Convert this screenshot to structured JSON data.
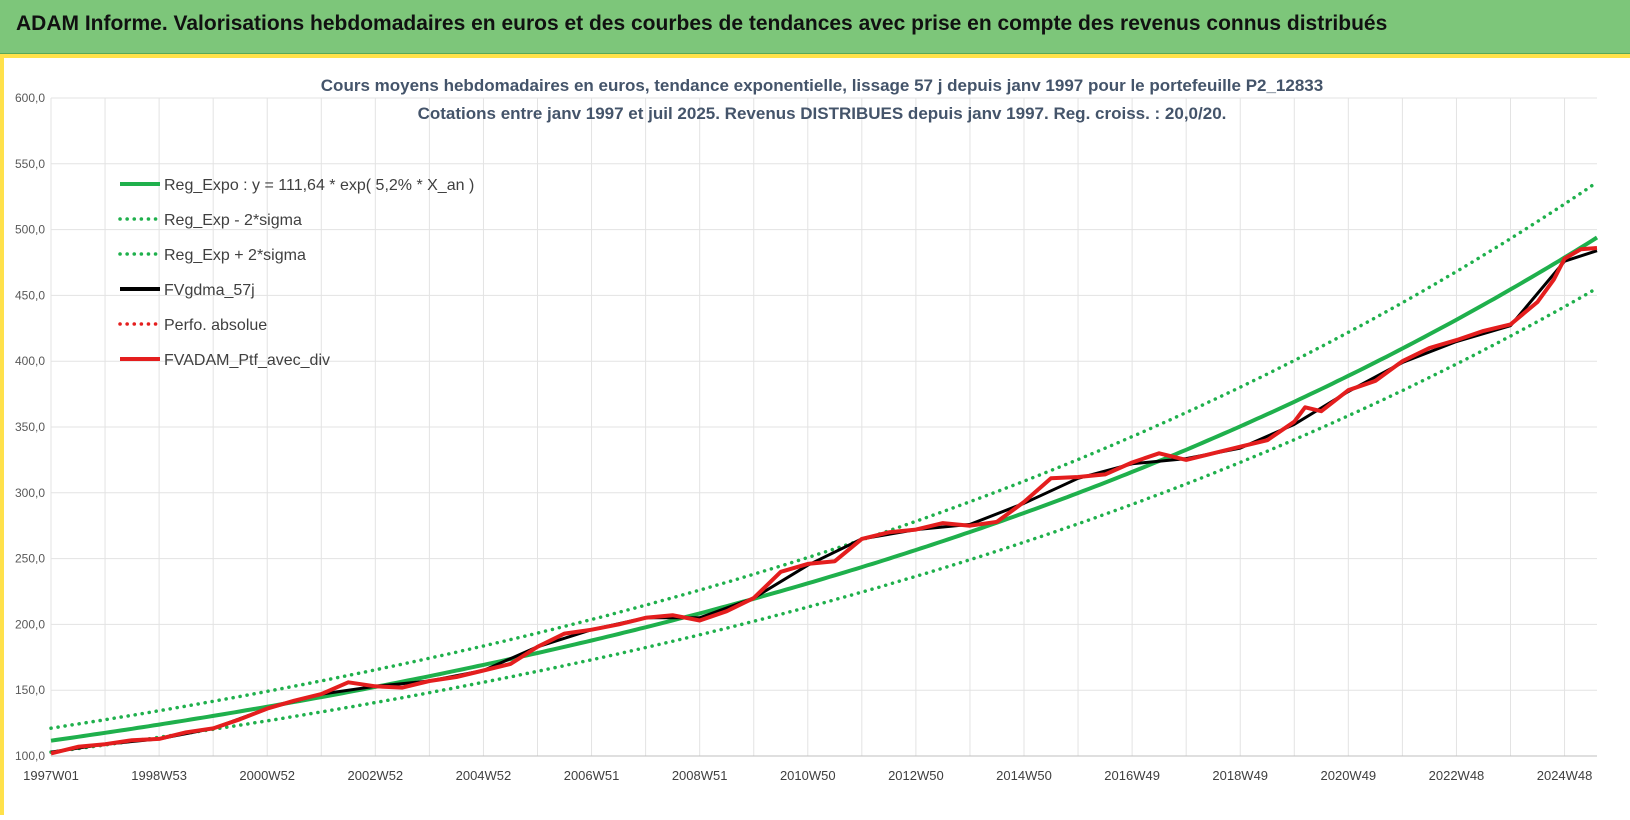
{
  "header": {
    "title": "ADAM Informe. Valorisations hebdomadaires en euros et des courbes de tendances avec prise en compte des revenus connus distribués"
  },
  "chart_data": {
    "type": "line",
    "title": "Cours moyens hebdomadaires  en euros, tendance exponentielle, lissage 57 j depuis janv 1997 pour le portefeuille P2_12833",
    "subtitle": "Cotations  entre janv 1997 et juil 2025. Revenus DISTRIBUES depuis janv 1997. Reg. croiss. : 20,0/20.",
    "xlabel": "",
    "ylabel": "",
    "ylim": [
      100,
      600
    ],
    "xlim": [
      1997.0,
      2025.6
    ],
    "grid": true,
    "legend_position": "top-left",
    "y_ticks": [
      100,
      150,
      200,
      250,
      300,
      350,
      400,
      450,
      500,
      550,
      600
    ],
    "y_tick_labels": [
      "100,0",
      "150,0",
      "200,0",
      "250,0",
      "300,0",
      "350,0",
      "400,0",
      "450,0",
      "500,0",
      "550,0",
      "600,0"
    ],
    "x_ticks": [
      {
        "label": "1997W01",
        "t": 1997.0
      },
      {
        "label": "1998W53",
        "t": 1999.0
      },
      {
        "label": "2000W52",
        "t": 2001.0
      },
      {
        "label": "2002W52",
        "t": 2003.0
      },
      {
        "label": "2004W52",
        "t": 2005.0
      },
      {
        "label": "2006W51",
        "t": 2007.0
      },
      {
        "label": "2008W51",
        "t": 2009.0
      },
      {
        "label": "2010W50",
        "t": 2011.0
      },
      {
        "label": "2012W50",
        "t": 2013.0
      },
      {
        "label": "2014W50",
        "t": 2015.0
      },
      {
        "label": "2016W49",
        "t": 2017.0
      },
      {
        "label": "2018W49",
        "t": 2019.0
      },
      {
        "label": "2020W49",
        "t": 2021.0
      },
      {
        "label": "2022W48",
        "t": 2023.0
      },
      {
        "label": "2024W48",
        "t": 2025.0
      }
    ],
    "regression": {
      "a": 111.64,
      "rate": 0.052,
      "upper_factor": 1.085,
      "lower_factor": 0.922
    },
    "legend": [
      {
        "name": "Reg_Expo : y = 111,64 * exp( 5,2% *  X_an )",
        "color": "#1fb04c",
        "style": "solid"
      },
      {
        "name": "Reg_Exp - 2*sigma",
        "color": "#1fb04c",
        "style": "dotted"
      },
      {
        "name": "Reg_Exp + 2*sigma",
        "color": "#1fb04c",
        "style": "dotted"
      },
      {
        "name": "FVgdma_57j",
        "color": "#000000",
        "style": "solid"
      },
      {
        "name": "Perfo. absolue",
        "color": "#e41e1e",
        "style": "dotted"
      },
      {
        "name": "FVADAM_Ptf_avec_div",
        "color": "#e41e1e",
        "style": "solid"
      }
    ],
    "series": [
      {
        "name": "FVADAM_Ptf_avec_div",
        "x": [
          1997.0,
          1997.5,
          1998.0,
          1998.5,
          1999.0,
          1999.5,
          2000.0,
          2000.5,
          2001.0,
          2001.5,
          2002.0,
          2002.5,
          2003.0,
          2003.5,
          2004.0,
          2004.5,
          2005.0,
          2005.5,
          2006.0,
          2006.5,
          2007.0,
          2007.5,
          2008.0,
          2008.5,
          2009.0,
          2009.5,
          2010.0,
          2010.5,
          2011.0,
          2011.5,
          2012.0,
          2012.5,
          2013.0,
          2013.5,
          2014.0,
          2014.5,
          2015.0,
          2015.5,
          2016.0,
          2016.5,
          2017.0,
          2017.5,
          2018.0,
          2018.5,
          2019.0,
          2019.5,
          2020.0,
          2020.2,
          2020.5,
          2021.0,
          2021.5,
          2022.0,
          2022.5,
          2023.0,
          2023.5,
          2024.0,
          2024.5,
          2024.8,
          2025.0,
          2025.3,
          2025.6
        ],
        "values": [
          102,
          107,
          109,
          112,
          113,
          118,
          121,
          128,
          136,
          142,
          147,
          156,
          153,
          152,
          157,
          160,
          165,
          170,
          183,
          193,
          196,
          200,
          205,
          207,
          203,
          210,
          220,
          240,
          246,
          248,
          265,
          270,
          272,
          277,
          275,
          278,
          293,
          311,
          312,
          314,
          323,
          330,
          325,
          330,
          335,
          340,
          354,
          365,
          362,
          378,
          385,
          400,
          410,
          416,
          423,
          428,
          445,
          462,
          478,
          485,
          486
        ]
      },
      {
        "name": "FVgdma_57j",
        "x": [
          1997.0,
          1998.0,
          1999.0,
          2000.0,
          2001.0,
          2002.0,
          2003.0,
          2004.0,
          2005.0,
          2006.0,
          2007.0,
          2008.0,
          2009.0,
          2010.0,
          2011.0,
          2012.0,
          2013.0,
          2014.0,
          2015.0,
          2016.0,
          2017.0,
          2018.0,
          2019.0,
          2020.0,
          2021.0,
          2022.0,
          2023.0,
          2024.0,
          2025.0,
          2025.6
        ],
        "values": [
          103,
          109,
          113,
          121,
          136,
          147,
          153,
          157,
          165,
          183,
          196,
          205,
          205,
          220,
          245,
          265,
          272,
          276,
          292,
          311,
          322,
          326,
          334,
          352,
          377,
          399,
          415,
          427,
          476,
          484
        ]
      }
    ]
  }
}
